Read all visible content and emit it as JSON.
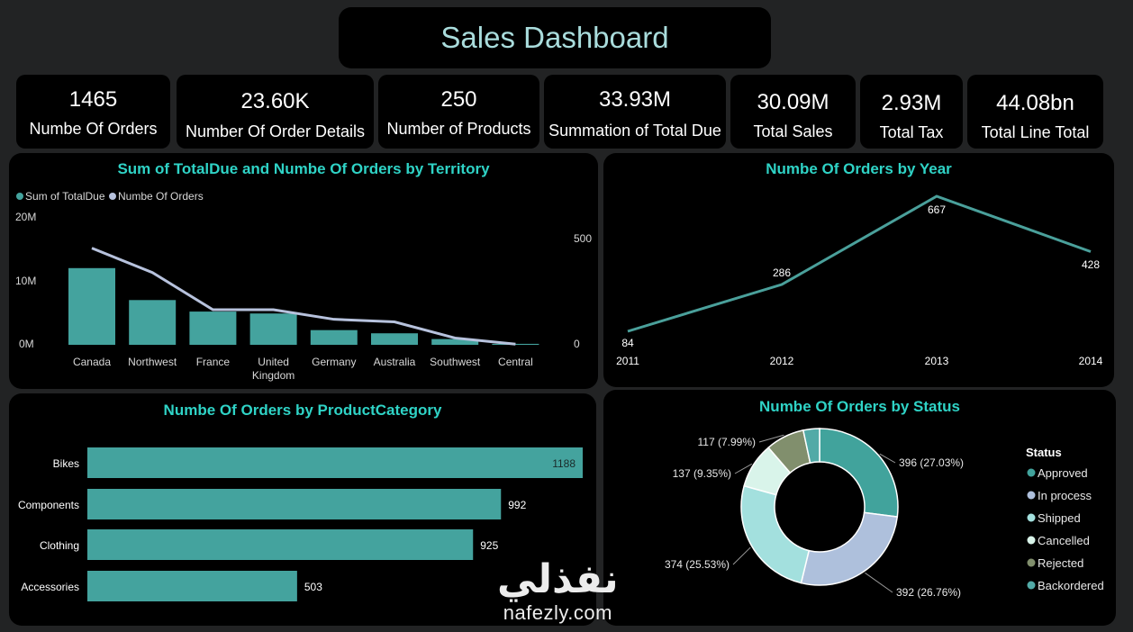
{
  "header": {
    "title": "Sales Dashboard"
  },
  "kpis": [
    {
      "value": "1465",
      "label": "Numbe Of Orders"
    },
    {
      "value": "23.60K",
      "label": "Number Of Order Details"
    },
    {
      "value": "250",
      "label": "Number of Products"
    },
    {
      "value": "33.93M",
      "label": "Summation of Total Due"
    },
    {
      "value": "30.09M",
      "label": "Total Sales"
    },
    {
      "value": "2.93M",
      "label": "Total Tax"
    },
    {
      "value": "44.08bn",
      "label": "Total Line Total"
    }
  ],
  "colors": {
    "teal": "#44a39e",
    "line": "#b7c2dd",
    "title": "#2fd3c6",
    "year_line": "#4aa09b"
  },
  "chart_data": [
    {
      "type": "bar",
      "title": "Sum of TotalDue and Numbe Of Orders by Territory",
      "legend": [
        "Sum of TotalDue",
        "Numbe Of Orders"
      ],
      "legend_position": "top-left",
      "categories": [
        "Canada",
        "Northwest",
        "France",
        "United Kingdom",
        "Germany",
        "Australia",
        "Southwest",
        "Central"
      ],
      "series": [
        {
          "name": "Sum of TotalDue",
          "axis": "left",
          "values": [
            12000000,
            7000000,
            5200000,
            4900000,
            2300000,
            1800000,
            900000,
            150000
          ]
        },
        {
          "name": "Numbe Of Orders",
          "axis": "right",
          "type": "line",
          "values": [
            455,
            340,
            165,
            165,
            120,
            108,
            32,
            3
          ]
        }
      ],
      "left_ticks": [
        "20M",
        "10M",
        "0M"
      ],
      "right_ticks": [
        "500",
        "0"
      ],
      "ylim_left": [
        0,
        20000000
      ],
      "ylim_right": [
        0,
        500
      ]
    },
    {
      "type": "line",
      "title": "Numbe Of Orders by Year",
      "x": [
        "2011",
        "2012",
        "2013",
        "2014"
      ],
      "values": [
        84,
        286,
        667,
        428
      ],
      "ylim": [
        0,
        700
      ]
    },
    {
      "type": "bar",
      "orientation": "horizontal",
      "title": "Numbe Of Orders by ProductCategory",
      "categories": [
        "Bikes",
        "Components",
        "Clothing",
        "Accessories"
      ],
      "values": [
        1188,
        992,
        925,
        503
      ],
      "xlim": [
        0,
        1188
      ]
    },
    {
      "type": "pie",
      "title": "Numbe Of Orders by Status",
      "legend_title": "Status",
      "legend_position": "right",
      "slices": [
        {
          "name": "Approved",
          "value": 396,
          "label": "396 (27.03%)",
          "color": "#41a39c"
        },
        {
          "name": "In process",
          "value": 392,
          "label": "392 (26.76%)",
          "color": "#aec0dc"
        },
        {
          "name": "Shipped",
          "value": 374,
          "label": "374 (25.53%)",
          "color": "#a3e0de"
        },
        {
          "name": "Cancelled",
          "value": 137,
          "label": "137 (9.35%)",
          "color": "#d9f4ea"
        },
        {
          "name": "Rejected",
          "value": 117,
          "label": "117 (7.99%)",
          "color": "#818f6d"
        },
        {
          "name": "Backordered",
          "value": 49,
          "label": "",
          "color": "#52aaa7"
        }
      ]
    }
  ],
  "watermark": {
    "arabic": "نفذلي",
    "latin": "nafezly.com"
  }
}
